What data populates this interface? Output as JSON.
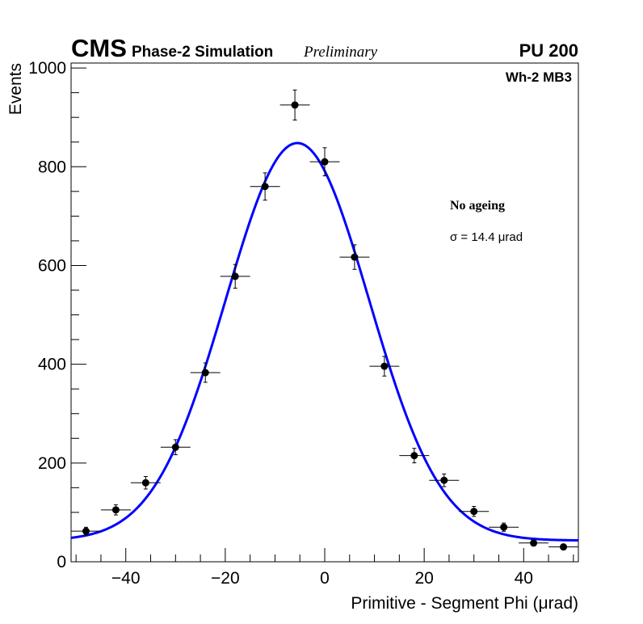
{
  "chart_data": {
    "type": "scatter",
    "experiment": "CMS",
    "subtitle": "Phase-2 Simulation",
    "status": "Preliminary",
    "pileup": "PU 200",
    "station": "Wh-2 MB3",
    "annotation_title": "No ageing",
    "annotation_sigma": "σ = 14.4  μrad",
    "xlabel": "Primitive - Segment Phi (μrad)",
    "ylabel": "Events",
    "xlim": [
      -51,
      51
    ],
    "ylim": [
      0,
      1010
    ],
    "xticks": [
      -40,
      -20,
      0,
      20,
      40
    ],
    "yticks": [
      0,
      200,
      400,
      600,
      800,
      1000
    ],
    "grid": false,
    "series": [
      {
        "name": "Data",
        "style": "points-with-errors",
        "color": "#000000",
        "x": [
          -48,
          -42,
          -36,
          -30,
          -24,
          -18,
          -12,
          -6,
          0,
          6,
          12,
          18,
          24,
          30,
          36,
          42,
          48
        ],
        "values": [
          62,
          105,
          160,
          232,
          383,
          578,
          760,
          925,
          810,
          617,
          396,
          215,
          165,
          102,
          70,
          38,
          30
        ],
        "x_error": 3
      },
      {
        "name": "Gaussian fit",
        "style": "line",
        "color": "#0000ff",
        "function": "gaussian_plus_constant",
        "amplitude": 805,
        "mean": -5.5,
        "sigma": 14.4,
        "constant": 43
      }
    ]
  }
}
